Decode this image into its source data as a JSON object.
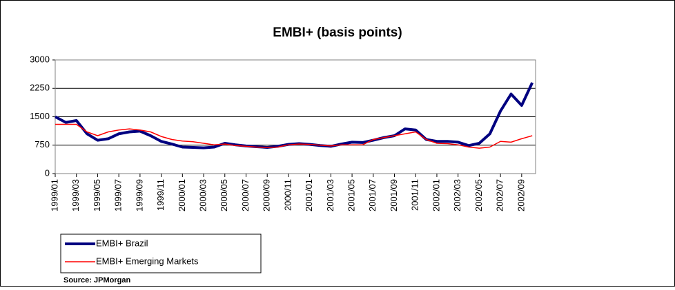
{
  "chart_data": {
    "type": "line",
    "title": "EMBI+ (basis points)",
    "source": "Source: JPMorgan",
    "categories": [
      "1999/01",
      null,
      "1999/03",
      null,
      "1999/05",
      null,
      "1999/07",
      null,
      "1999/09",
      null,
      "1999/11",
      null,
      "2000/01",
      null,
      "2000/03",
      null,
      "2000/05",
      null,
      "2000/07",
      null,
      "2000/09",
      null,
      "2000/11",
      null,
      "2001/01",
      null,
      "2001/03",
      null,
      "2001/05",
      null,
      "2001/07",
      null,
      "2001/09",
      null,
      "2001/11",
      null,
      "2002/01",
      null,
      "2002/03",
      null,
      "2002/05",
      null,
      "2002/07",
      null,
      "2002/09",
      null
    ],
    "series": [
      {
        "name": "EMBI+ Brazil",
        "color": "#000080",
        "values": [
          1500,
          1350,
          1400,
          1050,
          880,
          920,
          1050,
          1100,
          1120,
          1000,
          850,
          780,
          700,
          690,
          680,
          700,
          800,
          760,
          730,
          710,
          690,
          720,
          770,
          790,
          770,
          740,
          720,
          780,
          830,
          820,
          880,
          950,
          1000,
          1180,
          1150,
          900,
          850,
          850,
          830,
          740,
          800,
          1050,
          1650,
          2100,
          1800,
          2400
        ]
      },
      {
        "name": "EMBI+ Emerging Markets",
        "color": "#ff0000",
        "values": [
          1300,
          1300,
          1300,
          1100,
          1000,
          1100,
          1150,
          1180,
          1150,
          1100,
          980,
          900,
          860,
          840,
          800,
          760,
          780,
          740,
          720,
          700,
          690,
          700,
          760,
          780,
          770,
          750,
          730,
          760,
          760,
          760,
          900,
          950,
          1000,
          1050,
          1100,
          900,
          800,
          790,
          760,
          700,
          670,
          700,
          850,
          830,
          920,
          1000
        ]
      }
    ],
    "ylim": [
      0,
      3000
    ],
    "yticks": [
      0,
      750,
      1500,
      2250,
      3000
    ],
    "grid": true
  }
}
